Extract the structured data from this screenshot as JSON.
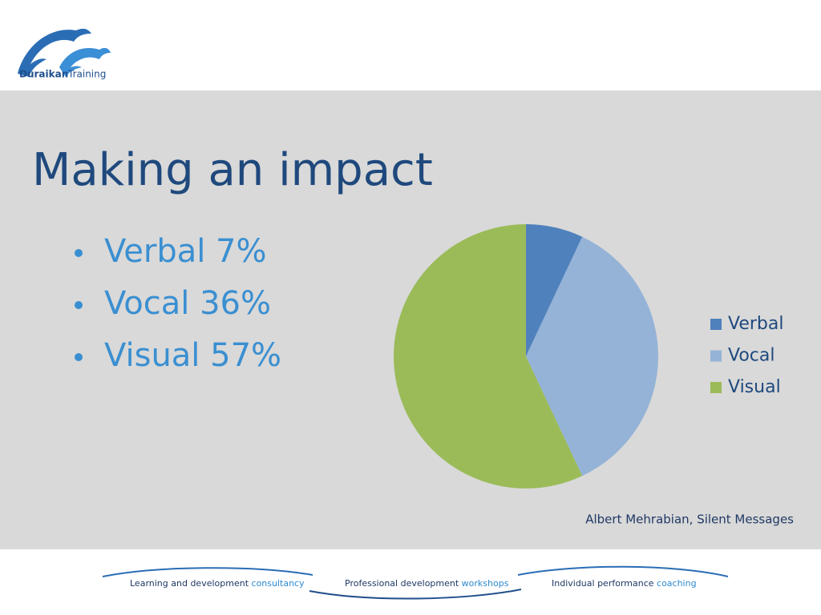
{
  "logo": {
    "name": "Duraikan",
    "tagline": "Training"
  },
  "bullets": [
    "Verbal  7%",
    "Vocal  36%",
    "Visual 57%"
  ],
  "chart_data": {
    "type": "pie",
    "title": "Making an impact",
    "categories": [
      "Verbal",
      "Vocal",
      "Visual"
    ],
    "values": [
      7,
      36,
      57
    ],
    "colors": [
      "#4f81bd",
      "#95b3d7",
      "#9bbb59"
    ],
    "legend": "right"
  },
  "source": "Albert Mehrabian, Silent Messages",
  "footer": [
    {
      "lead": "Learning and development",
      "accent": "consultancy"
    },
    {
      "lead": "Professional development",
      "accent": "workshops"
    },
    {
      "lead": "Individual performance",
      "accent": "coaching"
    }
  ]
}
